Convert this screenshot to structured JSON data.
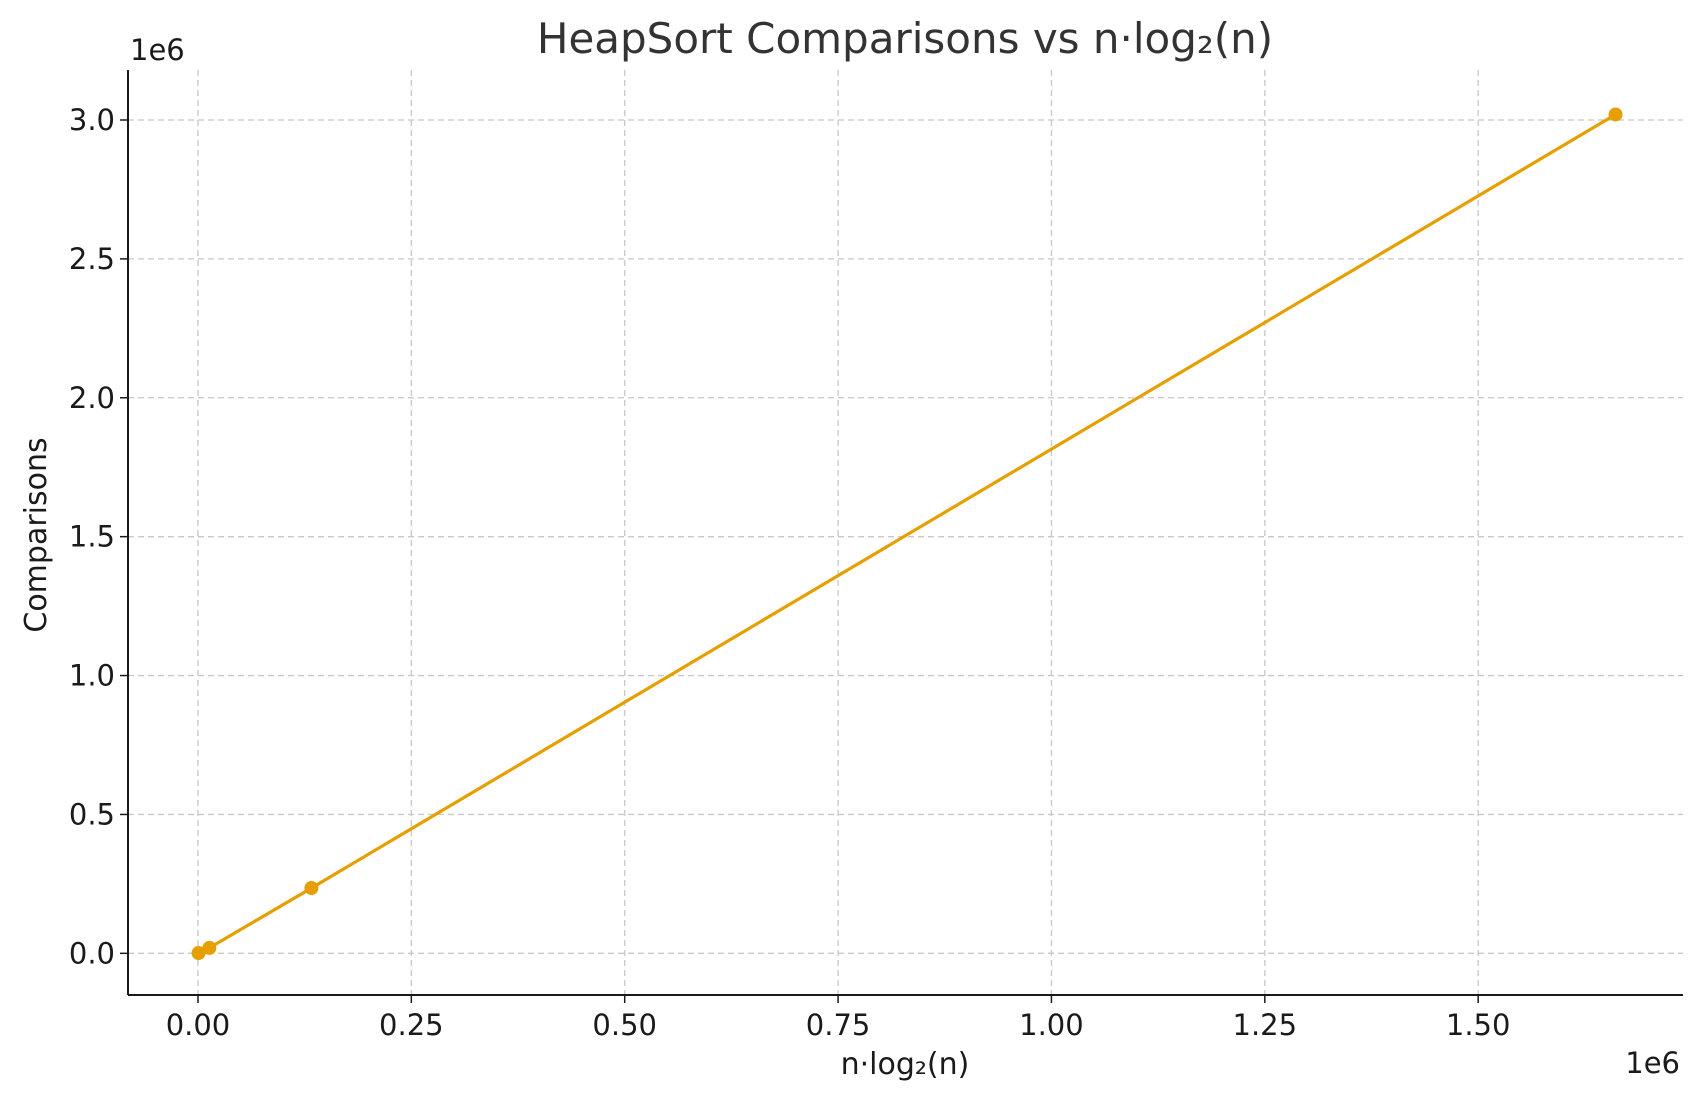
{
  "chart_data": {
    "type": "line",
    "title": "HeapSort Comparisons vs n·log₂(n)",
    "xlabel": "n·log₂(n)",
    "ylabel": "Comparisons",
    "x_offset_text": "1e6",
    "y_offset_text": "1e6",
    "xlim": [
      -0.082,
      1.74
    ],
    "ylim": [
      -0.15,
      3.18
    ],
    "x_ticks": [
      0.0,
      0.25,
      0.5,
      0.75,
      1.0,
      1.25,
      1.5
    ],
    "x_tick_labels": [
      "0.00",
      "0.25",
      "0.50",
      "0.75",
      "1.00",
      "1.25",
      "1.50"
    ],
    "y_ticks": [
      0.0,
      0.5,
      1.0,
      1.5,
      2.0,
      2.5,
      3.0
    ],
    "y_tick_labels": [
      "0.0",
      "0.5",
      "1.0",
      "1.5",
      "2.0",
      "2.5",
      "3.0"
    ],
    "grid": true,
    "series": [
      {
        "color": "#E69F00",
        "marker": "circle",
        "x": [
          0.00066,
          0.0133,
          0.1329,
          1.661
        ],
        "y": [
          0.001,
          0.0195,
          0.235,
          3.02
        ]
      }
    ]
  }
}
